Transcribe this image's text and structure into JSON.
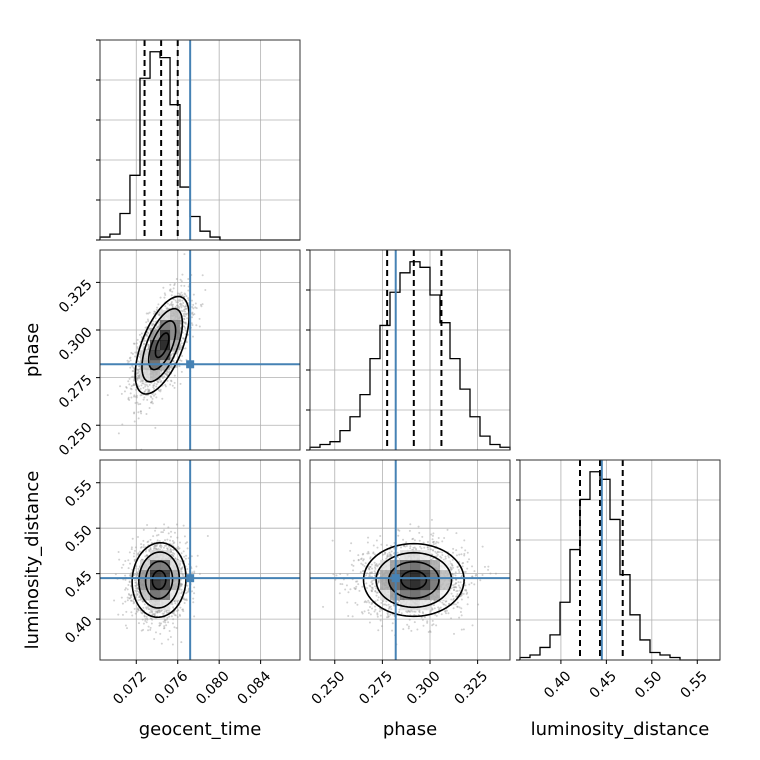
{
  "chart_data": {
    "type": "corner",
    "parameters": [
      {
        "name": "geocent_time",
        "label": "geocent_time",
        "range": [
          0.0685,
          0.0878
        ],
        "ticks": [
          0.072,
          0.076,
          0.08,
          0.084
        ],
        "tick_labels": [
          "0.072",
          "0.076",
          "0.080",
          "0.084"
        ],
        "truth": 0.0772,
        "quantiles": [
          0.0728,
          0.0744,
          0.076
        ],
        "hist_edges": [
          0.0685,
          0.06946,
          0.07043,
          0.07139,
          0.07236,
          0.07333,
          0.07429,
          0.07526,
          0.07622,
          0.07719,
          0.07815,
          0.07912,
          0.08008,
          0.08105,
          0.08201,
          0.08298,
          0.08395,
          0.08491,
          0.08588,
          0.08684,
          0.0878
        ],
        "hist_counts": [
          1,
          2,
          9,
          22,
          55,
          64,
          62,
          46,
          18,
          8,
          3,
          1,
          0,
          0,
          0,
          0,
          0,
          0,
          0,
          0
        ]
      },
      {
        "name": "phase",
        "label": "phase",
        "range": [
          0.237,
          0.342
        ],
        "ticks": [
          0.25,
          0.275,
          0.3,
          0.325
        ],
        "tick_labels": [
          "0.250",
          "0.275",
          "0.300",
          "0.325"
        ],
        "truth": 0.282,
        "quantiles": [
          0.2775,
          0.2915,
          0.306
        ],
        "hist_edges": [
          0.237,
          0.24225,
          0.2475,
          0.25275,
          0.258,
          0.26325,
          0.2685,
          0.27375,
          0.279,
          0.28425,
          0.2895,
          0.29475,
          0.3,
          0.30525,
          0.3105,
          0.31575,
          0.321,
          0.32625,
          0.3315,
          0.33675,
          0.342
        ],
        "hist_counts": [
          1,
          2,
          3,
          7,
          12,
          20,
          33,
          45,
          57,
          64,
          68,
          66,
          56,
          46,
          33,
          22,
          12,
          5,
          2,
          1
        ]
      },
      {
        "name": "luminosity_distance",
        "label": "luminosity_distance",
        "range": [
          0.355,
          0.575
        ],
        "ticks": [
          0.4,
          0.45,
          0.5,
          0.55
        ],
        "tick_labels": [
          "0.40",
          "0.45",
          "0.50",
          "0.55"
        ],
        "truth": 0.445,
        "quantiles": [
          0.421,
          0.443,
          0.468
        ],
        "hist_edges": [
          0.355,
          0.366,
          0.377,
          0.388,
          0.399,
          0.41,
          0.421,
          0.432,
          0.443,
          0.454,
          0.465,
          0.476,
          0.487,
          0.498,
          0.509,
          0.52,
          0.531,
          0.542,
          0.553,
          0.564,
          0.575
        ],
        "hist_counts": [
          1,
          2,
          5,
          10,
          23,
          44,
          64,
          75,
          72,
          56,
          34,
          18,
          8,
          3,
          2,
          1,
          0,
          0,
          0,
          0
        ]
      }
    ],
    "pairs": [
      {
        "x": "geocent_time",
        "y": "phase",
        "mean": [
          0.0745,
          0.292
        ],
        "sigma": [
          0.0013,
          0.0128
        ],
        "rho": 0.6
      },
      {
        "x": "geocent_time",
        "y": "luminosity_distance",
        "mean": [
          0.0742,
          0.443
        ],
        "sigma": [
          0.0013,
          0.0205
        ],
        "rho": 0.05
      },
      {
        "x": "phase",
        "y": "luminosity_distance",
        "mean": [
          0.2915,
          0.443
        ],
        "sigma": [
          0.0132,
          0.02
        ],
        "rho": 0.0
      }
    ],
    "contour_levels_sigma": [
      0.5,
      1.0,
      1.5,
      2.0
    ],
    "colors": {
      "truth": "#4682b4",
      "hist": "#000000",
      "quantile": "#000000",
      "grid": "#b0b0b0",
      "points": "#999999"
    },
    "grid": true
  }
}
